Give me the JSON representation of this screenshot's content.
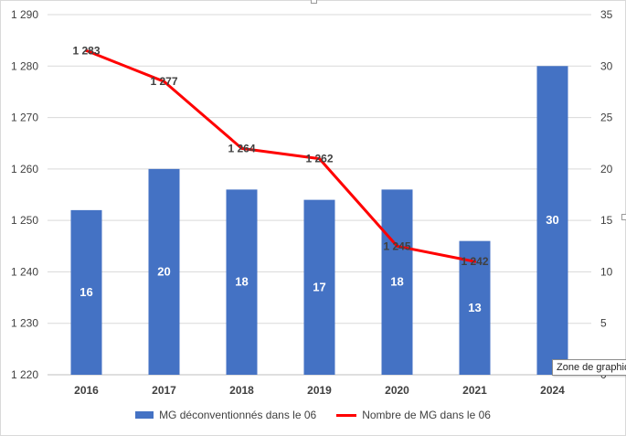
{
  "chart_data": {
    "type": "bar",
    "categories": [
      "2016",
      "2017",
      "2018",
      "2019",
      "2020",
      "2021",
      "2024"
    ],
    "series": [
      {
        "name": "MG déconventionnés dans le 06",
        "type": "bar",
        "axis": "right",
        "values": [
          16,
          20,
          18,
          17,
          18,
          13,
          30
        ],
        "data_labels": [
          "16",
          "20",
          "18",
          "17",
          "18",
          "13",
          "30"
        ],
        "color": "#4472c4"
      },
      {
        "name": "Nombre de MG dans le 06",
        "type": "line",
        "axis": "left",
        "values": [
          1283,
          1277,
          1264,
          1262,
          1245,
          1242,
          null
        ],
        "data_labels": [
          "1 283",
          "1 277",
          "1 264",
          "1 262",
          "1 245",
          "1 242"
        ],
        "color": "#ff0000"
      }
    ],
    "y_left": {
      "ylim": [
        1220,
        1290
      ],
      "ticks": [
        "1 220",
        "1 230",
        "1 240",
        "1 250",
        "1 260",
        "1 270",
        "1 280",
        "1 290"
      ]
    },
    "y_right": {
      "ylim": [
        0,
        35
      ],
      "ticks": [
        "0",
        "5",
        "10",
        "15",
        "20",
        "25",
        "30",
        "35"
      ]
    },
    "grid": true,
    "legend_position": "bottom"
  },
  "tooltip": "Zone de graphique"
}
